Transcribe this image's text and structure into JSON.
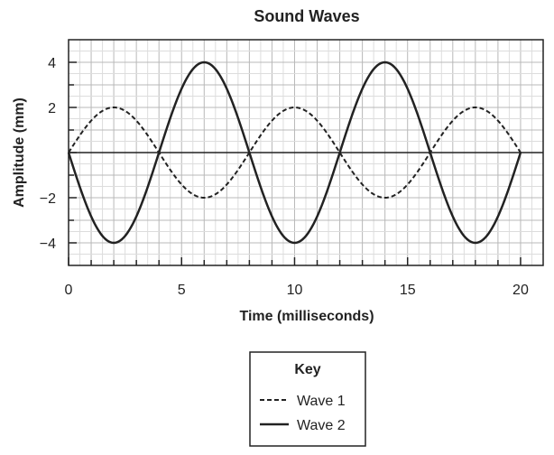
{
  "chart_data": {
    "type": "line",
    "title": "Sound Waves",
    "xlabel": "Time (milliseconds)",
    "ylabel": "Amplitude (mm)",
    "xlim": [
      0,
      21
    ],
    "ylim": [
      -5,
      5
    ],
    "x_tick_labels": [
      "0",
      "5",
      "10",
      "15",
      "20"
    ],
    "y_tick_labels": [
      "4",
      "2",
      "−2",
      "−4"
    ],
    "grid": true,
    "legend_title": "Key",
    "legend_position": "bottom-center",
    "series": [
      {
        "name": "Wave 1",
        "style": "dashed",
        "color": "#222222",
        "x": [
          0,
          1,
          2,
          3,
          4,
          5,
          6,
          7,
          8,
          9,
          10,
          11,
          12,
          13,
          14,
          15,
          16,
          17,
          18,
          19,
          20
        ],
        "y": [
          0,
          1.414,
          2,
          1.414,
          0,
          -1.414,
          -2,
          -1.414,
          0,
          1.414,
          2,
          1.414,
          0,
          -1.414,
          -2,
          -1.414,
          0,
          1.414,
          2,
          1.414,
          0
        ]
      },
      {
        "name": "Wave 2",
        "style": "solid",
        "color": "#222222",
        "x": [
          0,
          1,
          2,
          3,
          4,
          5,
          6,
          7,
          8,
          9,
          10,
          11,
          12,
          13,
          14,
          15,
          16,
          17,
          18,
          19,
          20
        ],
        "y": [
          0,
          -2.828,
          -4,
          -2.828,
          0,
          2.828,
          4,
          2.828,
          0,
          -2.828,
          -4,
          -2.828,
          0,
          2.828,
          4,
          2.828,
          0,
          -2.828,
          -4,
          -2.828,
          0
        ]
      }
    ]
  }
}
